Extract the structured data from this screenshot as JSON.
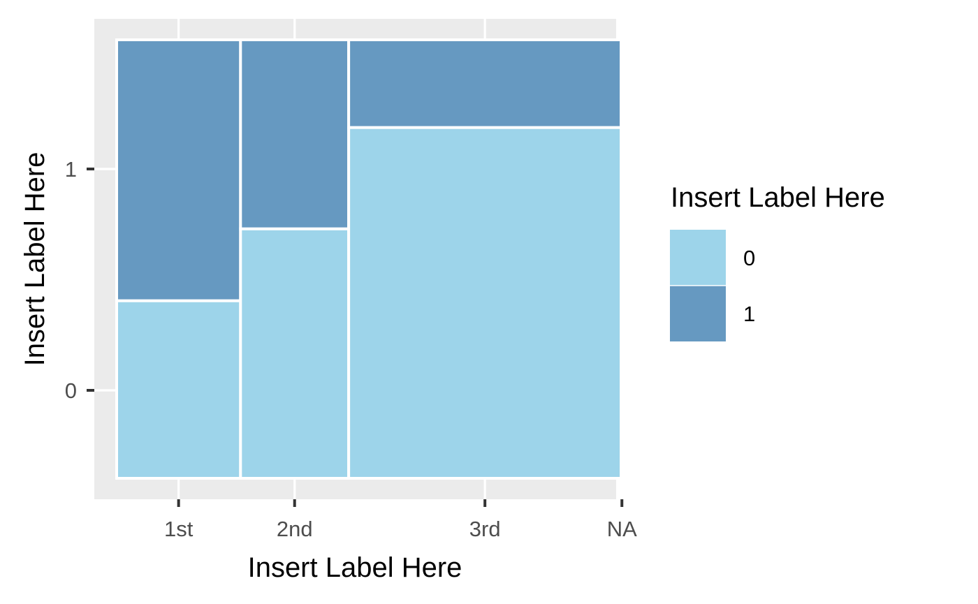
{
  "chart_data": {
    "type": "mosaic",
    "title": "",
    "xlabel": "Insert Label Here",
    "ylabel": "Insert Label Here",
    "categories": [
      "1st",
      "2nd",
      "3rd",
      "NA"
    ],
    "category_shares": [
      0.26,
      0.227,
      0.572,
      0.003
    ],
    "y_ticks": [
      0,
      1
    ],
    "legend": {
      "title": "Insert Label Here",
      "entries": [
        {
          "label": "0",
          "color": "#9dd4ea"
        },
        {
          "label": "1",
          "color": "#6699c1"
        }
      ],
      "position": "right"
    },
    "series": [
      {
        "name": "0",
        "color": "#9dd4ea",
        "values": [
          0.405,
          0.569,
          0.8,
          1.0
        ]
      },
      {
        "name": "1",
        "color": "#6699c1",
        "values": [
          0.595,
          0.431,
          0.2,
          0.0
        ]
      }
    ]
  },
  "colors": {
    "panel_background": "#ebebeb",
    "grid": "#ffffff",
    "tick": "#333333"
  }
}
